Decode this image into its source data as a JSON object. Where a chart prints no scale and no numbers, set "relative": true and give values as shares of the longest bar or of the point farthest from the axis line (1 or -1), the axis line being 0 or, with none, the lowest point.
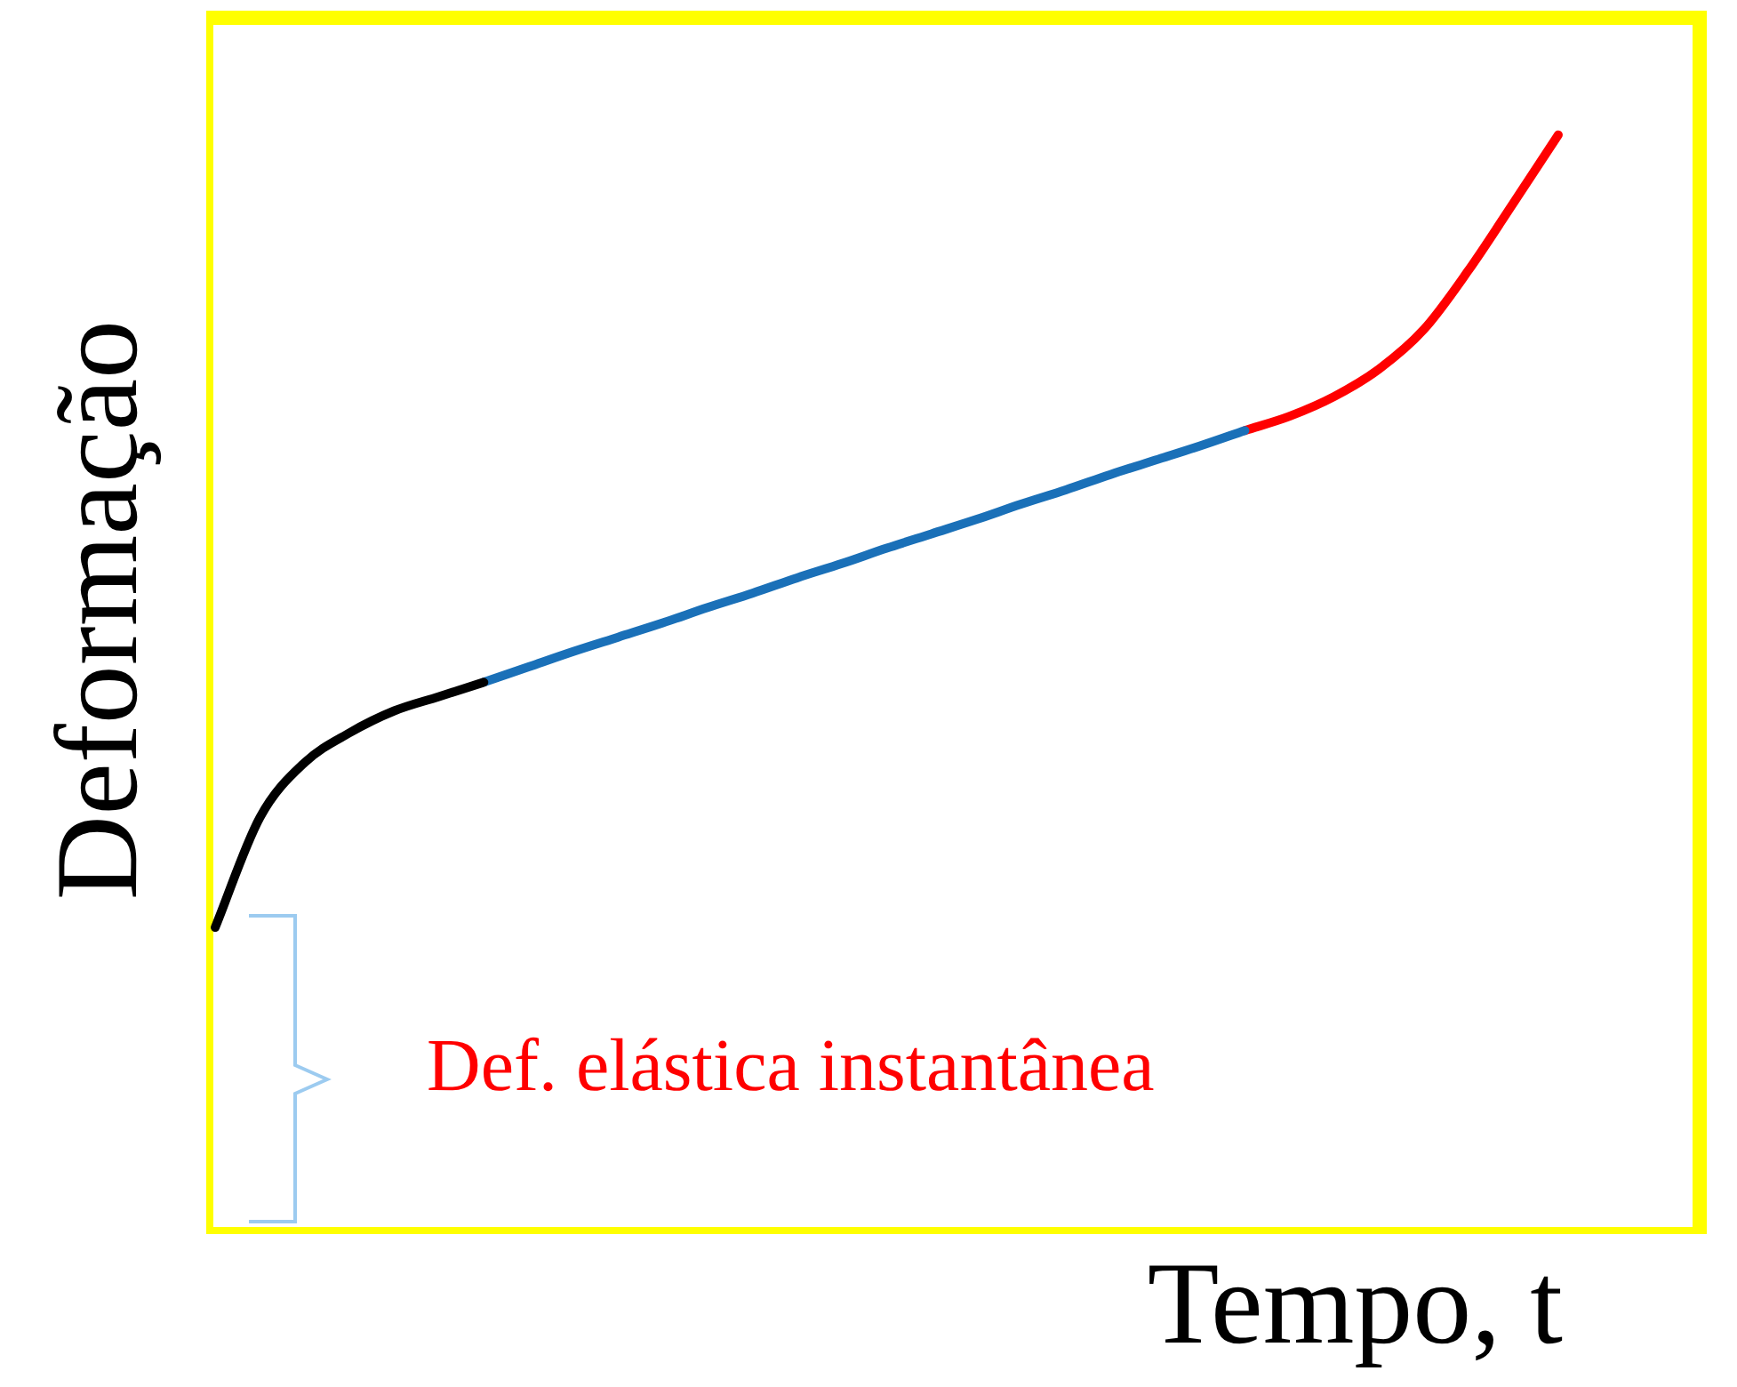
{
  "chart_data": {
    "type": "line",
    "relative": true,
    "xlabel": "Tempo, t",
    "ylabel": "Deformação",
    "legend": false,
    "categories": [
      null,
      null,
      null,
      null,
      null,
      null,
      null,
      null,
      null,
      null,
      null,
      null,
      null,
      null,
      null,
      null,
      null,
      null,
      null,
      null,
      null,
      null,
      null,
      null,
      null,
      null,
      null,
      null,
      null,
      null,
      null
    ],
    "series": [
      {
        "color": "#000000",
        "values": [
          0.279,
          0.379,
          0.429,
          0.456,
          0.476,
          0.489,
          0.502,
          null,
          null,
          null,
          null,
          null,
          null,
          null,
          null,
          null,
          null,
          null,
          null,
          null,
          null,
          null,
          null,
          null,
          null,
          null,
          null,
          null,
          null,
          null,
          null
        ]
      },
      {
        "color": "#1a70b8",
        "values": [
          null,
          null,
          null,
          null,
          null,
          null,
          0.502,
          0.516,
          0.53,
          0.543,
          0.556,
          0.57,
          0.583,
          0.597,
          0.61,
          0.624,
          0.637,
          0.65,
          0.664,
          0.677,
          0.691,
          0.704,
          0.717,
          0.731,
          null,
          null,
          null,
          null,
          null,
          null,
          null
        ]
      },
      {
        "color": "#ff0000",
        "values": [
          null,
          null,
          null,
          null,
          null,
          null,
          null,
          null,
          null,
          null,
          null,
          null,
          null,
          null,
          null,
          null,
          null,
          null,
          null,
          null,
          null,
          null,
          null,
          0.731,
          0.744,
          0.762,
          0.787,
          0.823,
          0.877,
          0.938,
          1
        ]
      }
    ],
    "annotations": [
      "Def. elástica instantânea"
    ]
  }
}
